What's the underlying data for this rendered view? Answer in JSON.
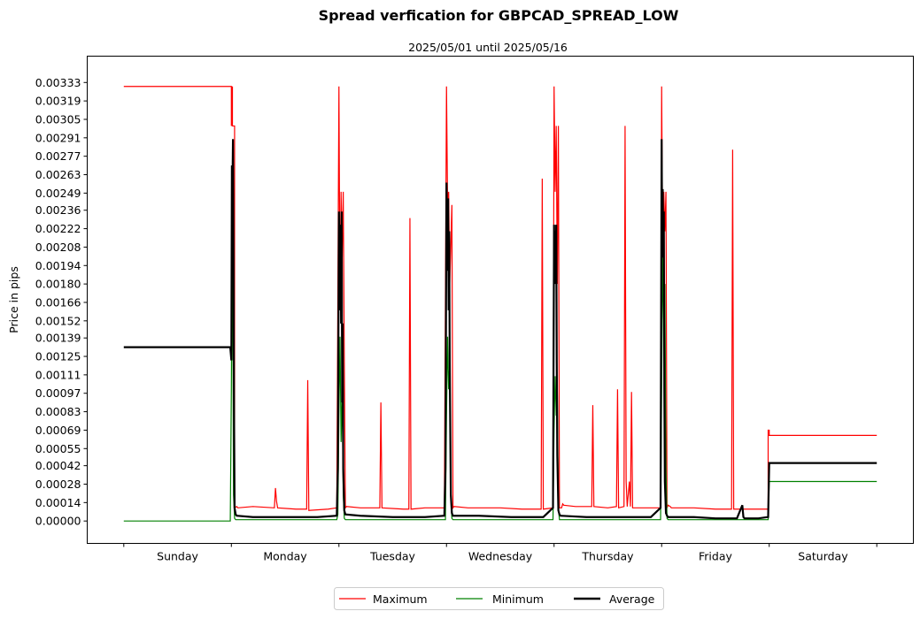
{
  "chart_data": {
    "type": "line",
    "title": "Spread verfication for GBPCAD_SPREAD_LOW",
    "subtitle": "2025/05/01 until 2025/05/16",
    "ylabel": "Price in pips",
    "xlabel": "",
    "categories": [
      "Sunday",
      "Monday",
      "Tuesday",
      "Wednesday",
      "Thursday",
      "Friday",
      "Saturday"
    ],
    "y_ticks": [
      "0.00000",
      "0.00014",
      "0.00028",
      "0.00042",
      "0.00055",
      "0.00069",
      "0.00083",
      "0.00097",
      "0.00111",
      "0.00125",
      "0.00139",
      "0.00152",
      "0.00166",
      "0.00180",
      "0.00194",
      "0.00208",
      "0.00222",
      "0.00236",
      "0.00249",
      "0.00263",
      "0.00277",
      "0.00291",
      "0.00305",
      "0.00319",
      "0.00333"
    ],
    "ylim": [
      -0.00017,
      0.00353
    ],
    "xlim": [
      -0.34,
      7.34
    ],
    "grid": false,
    "legend_position": "bottom-center",
    "series": [
      {
        "name": "Maximum",
        "color": "#ff0000",
        "x": [
          0.0,
          1.0,
          1.0,
          1.01,
          1.01,
          1.03,
          1.03,
          1.05,
          1.06,
          1.2,
          1.4,
          1.41,
          1.42,
          1.43,
          1.6,
          1.7,
          1.71,
          1.72,
          1.9,
          1.98,
          2.0,
          2.01,
          2.02,
          2.03,
          2.04,
          2.05,
          2.06,
          2.07,
          2.2,
          2.38,
          2.39,
          2.4,
          2.6,
          2.65,
          2.66,
          2.67,
          2.8,
          2.98,
          3.0,
          3.01,
          3.02,
          3.03,
          3.05,
          3.06,
          3.07,
          3.2,
          3.5,
          3.7,
          3.88,
          3.89,
          3.9,
          3.99,
          4.0,
          4.01,
          4.02,
          4.03,
          4.04,
          4.05,
          4.07,
          4.08,
          4.09,
          4.2,
          4.35,
          4.36,
          4.37,
          4.5,
          4.58,
          4.59,
          4.6,
          4.65,
          4.66,
          4.67,
          4.68,
          4.7,
          4.71,
          4.72,
          4.73,
          4.9,
          4.99,
          5.0,
          5.01,
          5.02,
          5.03,
          5.04,
          5.05,
          5.06,
          5.08,
          5.09,
          5.3,
          5.5,
          5.6,
          5.65,
          5.66,
          5.67,
          5.8,
          5.99,
          5.99,
          6.0,
          6.0,
          7.0
        ],
        "y": [
          0.0033,
          0.0033,
          0.003,
          0.0033,
          0.003,
          0.003,
          0.0001,
          0.00011,
          0.0001,
          0.00011,
          0.0001,
          0.00025,
          0.00015,
          0.0001,
          9e-05,
          9e-05,
          0.00107,
          8e-05,
          9e-05,
          0.0001,
          0.0033,
          0.0016,
          0.0025,
          0.002,
          0.0025,
          0.0012,
          0.0001,
          0.00011,
          0.0001,
          0.0001,
          0.0009,
          0.0001,
          9e-05,
          9e-05,
          0.0023,
          9e-05,
          0.0001,
          0.0001,
          0.0033,
          0.0024,
          0.0025,
          0.0018,
          0.0024,
          0.0001,
          0.00011,
          0.0001,
          0.0001,
          9e-05,
          9e-05,
          0.0026,
          9e-05,
          0.0001,
          0.0033,
          0.0025,
          0.003,
          0.0018,
          0.003,
          0.0001,
          0.0001,
          0.00013,
          0.00012,
          0.00011,
          0.00011,
          0.00088,
          0.00011,
          0.0001,
          0.00011,
          0.001,
          0.0001,
          0.00011,
          0.003,
          0.0003,
          0.00011,
          0.0003,
          0.00011,
          0.00098,
          0.0001,
          0.0001,
          0.0001,
          0.0033,
          0.002,
          0.0025,
          0.0022,
          0.0025,
          0.0001,
          0.00012,
          0.00011,
          0.0001,
          0.0001,
          9e-05,
          9e-05,
          9e-05,
          0.00282,
          9e-05,
          9e-05,
          9e-05,
          0.00069,
          0.00069,
          0.00065,
          0.00065
        ]
      },
      {
        "name": "Minimum",
        "color": "#008000",
        "x": [
          0.0,
          0.99,
          1.0,
          1.01,
          1.02,
          1.03,
          1.04,
          1.5,
          1.98,
          1.99,
          2.0,
          2.01,
          2.02,
          2.03,
          2.04,
          2.05,
          2.06,
          2.5,
          2.99,
          3.0,
          3.01,
          3.02,
          3.03,
          3.04,
          3.05,
          3.06,
          3.5,
          3.99,
          4.0,
          4.01,
          4.02,
          4.03,
          4.04,
          4.05,
          4.06,
          4.5,
          4.99,
          5.0,
          5.01,
          5.02,
          5.03,
          5.04,
          5.05,
          5.06,
          5.5,
          5.8,
          5.99,
          6.0,
          6.0,
          7.0
        ],
        "y": [
          0.0,
          0.0,
          0.001,
          0.0025,
          0.0002,
          2e-05,
          1e-05,
          1e-05,
          1e-05,
          5e-05,
          0.0008,
          0.0014,
          0.0006,
          0.001,
          0.0002,
          2e-05,
          1e-05,
          1e-05,
          1e-05,
          0.0008,
          0.0014,
          0.001,
          0.0012,
          0.0002,
          2e-05,
          1e-05,
          1e-05,
          1e-05,
          0.0007,
          0.0011,
          0.0008,
          0.001,
          0.0001,
          1e-05,
          1e-05,
          1e-05,
          1e-05,
          0.001,
          0.002,
          0.0015,
          0.0018,
          0.0004,
          2e-05,
          1e-05,
          1e-05,
          1e-05,
          1e-05,
          0.0003,
          0.0003,
          0.0003
        ]
      },
      {
        "name": "Average",
        "color": "#000000",
        "x": [
          0.0,
          0.99,
          1.0,
          1.005,
          1.01,
          1.015,
          1.02,
          1.025,
          1.03,
          1.04,
          1.05,
          1.2,
          1.4,
          1.6,
          1.8,
          1.98,
          1.99,
          2.0,
          2.01,
          2.015,
          2.02,
          2.025,
          2.03,
          2.035,
          2.04,
          2.05,
          2.06,
          2.2,
          2.5,
          2.8,
          2.98,
          2.99,
          3.0,
          3.01,
          3.015,
          3.02,
          3.025,
          3.03,
          3.04,
          3.05,
          3.06,
          3.3,
          3.6,
          3.9,
          3.99,
          4.0,
          4.005,
          4.01,
          4.015,
          4.02,
          4.025,
          4.03,
          4.04,
          4.05,
          4.06,
          4.3,
          4.6,
          4.9,
          4.99,
          5.0,
          5.005,
          5.01,
          5.015,
          5.02,
          5.025,
          5.03,
          5.04,
          5.05,
          5.06,
          5.3,
          5.5,
          5.7,
          5.75,
          5.76,
          5.77,
          5.9,
          5.99,
          6.0,
          6.0,
          7.0
        ],
        "y": [
          0.00132,
          0.00132,
          0.00122,
          0.0027,
          0.0025,
          0.0029,
          0.002,
          0.0008,
          0.0001,
          5e-05,
          4e-05,
          3e-05,
          3e-05,
          3e-05,
          3e-05,
          4e-05,
          0.0004,
          0.00235,
          0.0016,
          0.00225,
          0.0015,
          0.00235,
          0.0009,
          0.0015,
          0.0004,
          8e-05,
          5e-05,
          4e-05,
          3e-05,
          3e-05,
          4e-05,
          0.0004,
          0.00257,
          0.0019,
          0.00245,
          0.0016,
          0.0022,
          0.0012,
          0.0002,
          6e-05,
          4e-05,
          4e-05,
          3e-05,
          3e-05,
          0.0001,
          0.00225,
          0.0018,
          0.0022,
          0.0018,
          0.00225,
          0.0012,
          0.0005,
          8e-05,
          5e-05,
          4e-05,
          3e-05,
          3e-05,
          3e-05,
          0.0001,
          0.0029,
          0.0021,
          0.00252,
          0.002,
          0.00235,
          0.001,
          0.0003,
          6e-05,
          4e-05,
          3e-05,
          3e-05,
          2e-05,
          2e-05,
          0.00012,
          3e-05,
          2e-05,
          2e-05,
          3e-05,
          0.00044,
          0.00044,
          0.00044
        ]
      }
    ]
  }
}
